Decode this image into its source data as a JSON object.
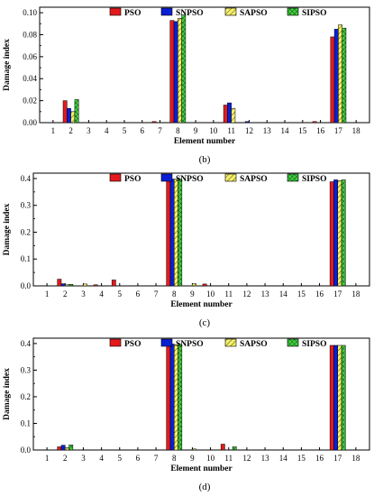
{
  "chart_data": [
    {
      "type": "bar",
      "panel_label": "(b)",
      "xlabel": "Element number",
      "ylabel": "Damage index",
      "ylim": [
        0,
        0.105
      ],
      "yticks": [
        0.0,
        0.02,
        0.04,
        0.06,
        0.08,
        0.1
      ],
      "ytick_labels": [
        "0.00",
        "0.02",
        "0.04",
        "0.06",
        "0.08",
        "0.10"
      ],
      "categories": [
        "1",
        "2",
        "3",
        "4",
        "5",
        "6",
        "7",
        "8",
        "9",
        "10",
        "11",
        "12",
        "13",
        "14",
        "15",
        "16",
        "17",
        "18"
      ],
      "legend_position": "top-center",
      "series": [
        {
          "name": "PSO",
          "values": [
            0,
            0.02,
            0,
            0,
            0,
            0,
            0.001,
            0.093,
            0,
            0,
            0.016,
            0,
            0,
            0,
            0,
            0.001,
            0.078,
            0
          ]
        },
        {
          "name": "SNPSO",
          "values": [
            0,
            0.013,
            0,
            0,
            0,
            0,
            0,
            0.092,
            0,
            0,
            0.018,
            0.001,
            0,
            0,
            0,
            0,
            0.085,
            0
          ]
        },
        {
          "name": "SAPSO",
          "values": [
            0,
            0.01,
            0,
            0,
            0,
            0,
            0,
            0.095,
            0,
            0,
            0.013,
            0,
            0,
            0,
            0,
            0,
            0.089,
            0
          ]
        },
        {
          "name": "SIPSO",
          "values": [
            0,
            0.021,
            0,
            0,
            0,
            0,
            0,
            0.098,
            0,
            0,
            0,
            0,
            0,
            0,
            0,
            0,
            0.086,
            0
          ]
        }
      ]
    },
    {
      "type": "bar",
      "panel_label": "(c)",
      "xlabel": "Element number",
      "ylabel": "Damage index",
      "ylim": [
        0,
        0.42
      ],
      "yticks": [
        0.0,
        0.1,
        0.2,
        0.3,
        0.4
      ],
      "ytick_labels": [
        "0.0",
        "0.1",
        "0.2",
        "0.3",
        "0.4"
      ],
      "categories": [
        "1",
        "2",
        "3",
        "4",
        "5",
        "6",
        "7",
        "8",
        "9",
        "10",
        "11",
        "12",
        "13",
        "14",
        "15",
        "16",
        "17",
        "18"
      ],
      "legend_position": "top-center",
      "series": [
        {
          "name": "PSO",
          "values": [
            0,
            0.025,
            0,
            0.004,
            0.022,
            0,
            0,
            0.395,
            0,
            0.007,
            0,
            0,
            0,
            0,
            0,
            0,
            0.388,
            0
          ]
        },
        {
          "name": "SNPSO",
          "values": [
            0,
            0.008,
            0,
            0,
            0,
            0,
            0,
            0.398,
            0,
            0,
            0,
            0,
            0,
            0,
            0,
            0,
            0.395,
            0
          ]
        },
        {
          "name": "SAPSO",
          "values": [
            0,
            0.004,
            0.007,
            0,
            0,
            0,
            0,
            0.398,
            0.008,
            0,
            0,
            0,
            0,
            0,
            0,
            0,
            0.392,
            0
          ]
        },
        {
          "name": "SIPSO",
          "values": [
            0,
            0.006,
            0,
            0,
            0,
            0,
            0,
            0.398,
            0,
            0,
            0,
            0,
            0,
            0,
            0,
            0,
            0.395,
            0
          ]
        }
      ]
    },
    {
      "type": "bar",
      "panel_label": "(d)",
      "xlabel": "Element number",
      "ylabel": "Damage index",
      "ylim": [
        0,
        0.42
      ],
      "yticks": [
        0.0,
        0.1,
        0.2,
        0.3,
        0.4
      ],
      "ytick_labels": [
        "0.0",
        "0.1",
        "0.2",
        "0.3",
        "0.4"
      ],
      "categories": [
        "1",
        "2",
        "3",
        "4",
        "5",
        "6",
        "7",
        "8",
        "9",
        "10",
        "11",
        "12",
        "13",
        "14",
        "15",
        "16",
        "17",
        "18"
      ],
      "legend_position": "top-center",
      "series": [
        {
          "name": "PSO",
          "values": [
            0,
            0.012,
            0,
            0,
            0,
            0,
            0,
            0.395,
            0,
            0,
            0.022,
            0,
            0,
            0,
            0,
            0,
            0.393,
            0
          ]
        },
        {
          "name": "SNPSO",
          "values": [
            0,
            0.018,
            0,
            0,
            0,
            0,
            0,
            0.398,
            0,
            0,
            0,
            0,
            0,
            0,
            0,
            0,
            0.393,
            0
          ]
        },
        {
          "name": "SAPSO",
          "values": [
            0,
            0.009,
            0,
            0,
            0,
            0,
            0,
            0.396,
            0.004,
            0,
            0,
            0,
            0,
            0,
            0,
            0,
            0.393,
            0
          ]
        },
        {
          "name": "SIPSO",
          "values": [
            0,
            0.019,
            0,
            0,
            0,
            0,
            0,
            0.397,
            0,
            0,
            0.012,
            0,
            0,
            0,
            0,
            0,
            0.393,
            0
          ]
        }
      ]
    }
  ],
  "series_colors": [
    "#e31a1c",
    "#0a1fd4",
    "#f5f06a",
    "#3fd13f"
  ]
}
